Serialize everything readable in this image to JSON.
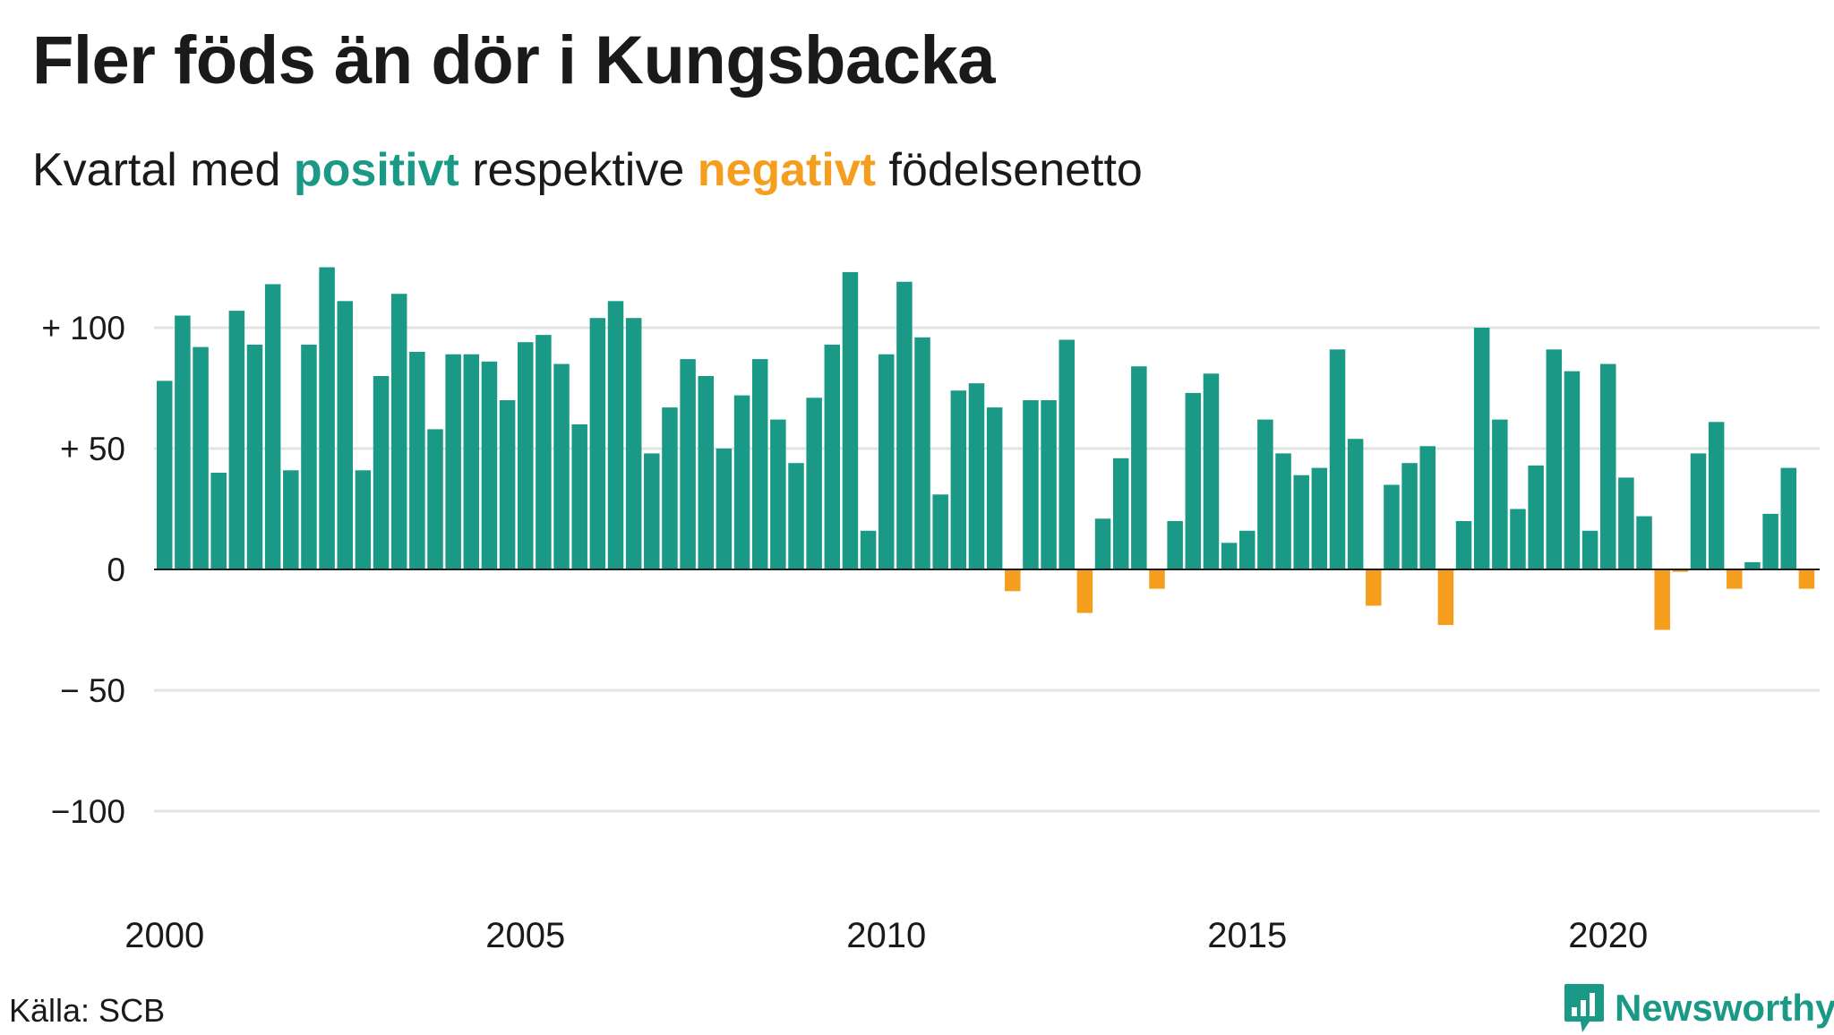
{
  "title": "Fler föds än dör i Kungsbacka",
  "subtitle": {
    "before": "Kvartal med ",
    "positive_word": "positivt",
    "middle": " respektive ",
    "negative_word": "negativt",
    "after": " födelsenetto"
  },
  "colors": {
    "positive": "#1a9a86",
    "negative": "#f59e1e",
    "grid": "#e3e3e3",
    "baseline": "#1a1a1a"
  },
  "source": "Källa: SCB",
  "brand": {
    "name": "Newsworthy",
    "icon": "newsworthy-logo-icon"
  },
  "chart_data": {
    "type": "bar",
    "title": "Fler föds än dör i Kungsbacka",
    "subtitle": "Kvartal med positivt respektive negativt födelsenetto",
    "xlabel": "",
    "ylabel": "",
    "ylim": [
      -130,
      130
    ],
    "grid": true,
    "yticks": [
      {
        "value": 100,
        "label": "+ 100"
      },
      {
        "value": 50,
        "label": "+  50"
      },
      {
        "value": 0,
        "label": "0"
      },
      {
        "value": -50,
        "label": "− 50"
      },
      {
        "value": -100,
        "label": "−100"
      }
    ],
    "xticks": [
      "2000",
      "2005",
      "2010",
      "2015",
      "2020"
    ],
    "start": "2000 Q1",
    "frequency": "quarter",
    "values": [
      78,
      105,
      92,
      40,
      107,
      93,
      118,
      41,
      93,
      125,
      111,
      41,
      80,
      114,
      90,
      58,
      89,
      89,
      86,
      70,
      94,
      97,
      85,
      60,
      104,
      111,
      104,
      48,
      67,
      87,
      80,
      50,
      72,
      87,
      62,
      44,
      71,
      93,
      123,
      16,
      89,
      119,
      96,
      31,
      74,
      77,
      67,
      -9,
      70,
      70,
      95,
      -18,
      21,
      46,
      84,
      -8,
      20,
      73,
      81,
      11,
      16,
      62,
      48,
      39,
      42,
      91,
      54,
      -15,
      35,
      44,
      51,
      -23,
      20,
      100,
      62,
      25,
      43,
      91,
      82,
      16,
      85,
      38,
      22,
      -25,
      -1,
      48,
      61,
      -8,
      3,
      23,
      42,
      -8
    ]
  }
}
